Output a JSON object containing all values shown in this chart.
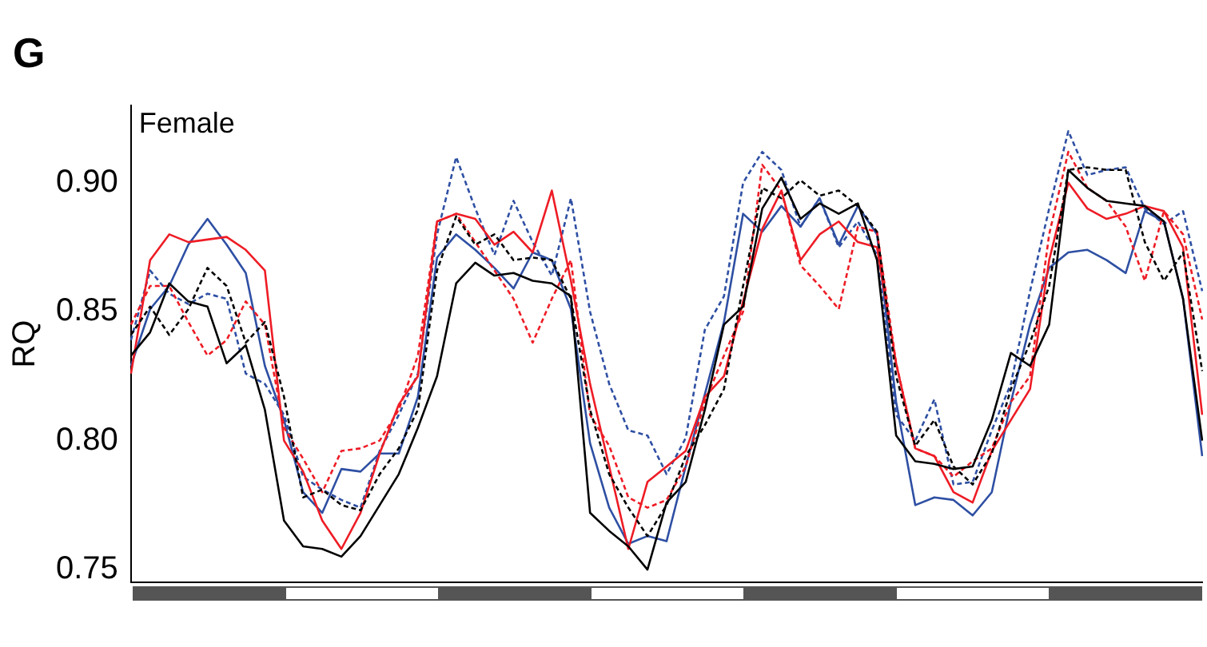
{
  "chart_data": {
    "type": "line",
    "ylabel": "RQ",
    "annotations": [
      "G",
      "Female"
    ],
    "categories": [
      null,
      null,
      null,
      null,
      null,
      null,
      null,
      null,
      null,
      null,
      null,
      null,
      null,
      null,
      null,
      null,
      null,
      null,
      null,
      null,
      null,
      null,
      null,
      null,
      null,
      null,
      null,
      null,
      null,
      null,
      null,
      null,
      null,
      null,
      null,
      null,
      null,
      null,
      null,
      null,
      null,
      null,
      null,
      null,
      null,
      null,
      null,
      null,
      null,
      null,
      null,
      null,
      null,
      null,
      null,
      null,
      null
    ],
    "ylim": [
      0.745,
      0.93
    ],
    "yticks": [
      {
        "value": 0.75,
        "label": "0.75"
      },
      {
        "value": 0.8,
        "label": "0.80"
      },
      {
        "value": 0.85,
        "label": "0.85"
      },
      {
        "value": 0.9,
        "label": "0.90"
      }
    ],
    "grid": false,
    "legend": false,
    "marker": "none",
    "series": [
      {
        "color": "#000000",
        "line_style": "solid",
        "values": [
          0.833,
          0.842,
          0.861,
          0.854,
          0.852,
          0.83,
          0.837,
          0.812,
          0.769,
          0.759,
          0.758,
          0.755,
          0.763,
          0.775,
          0.787,
          0.805,
          0.825,
          0.861,
          0.869,
          0.864,
          0.865,
          0.862,
          0.861,
          0.856,
          0.772,
          0.765,
          0.759,
          0.75,
          0.776,
          0.784,
          0.812,
          0.845,
          0.852,
          0.89,
          0.902,
          0.886,
          0.892,
          0.888,
          0.892,
          0.87,
          0.802,
          0.792,
          0.791,
          0.789,
          0.79,
          0.808,
          0.834,
          0.829,
          0.845,
          0.905,
          0.898,
          0.893,
          0.892,
          0.891,
          0.885,
          0.855,
          0.8
        ]
      },
      {
        "color": "#000000",
        "line_style": "dashed",
        "values": [
          0.841,
          0.852,
          0.841,
          0.851,
          0.867,
          0.86,
          0.838,
          0.846,
          0.817,
          0.778,
          0.781,
          0.775,
          0.773,
          0.787,
          0.797,
          0.812,
          0.866,
          0.887,
          0.876,
          0.88,
          0.87,
          0.871,
          0.87,
          0.855,
          0.812,
          0.787,
          0.774,
          0.763,
          0.775,
          0.794,
          0.806,
          0.82,
          0.86,
          0.898,
          0.894,
          0.901,
          0.895,
          0.897,
          0.891,
          0.881,
          0.825,
          0.798,
          0.808,
          0.79,
          0.783,
          0.795,
          0.82,
          0.838,
          0.86,
          0.905,
          0.906,
          0.905,
          0.905,
          0.877,
          0.862,
          0.873,
          0.827
        ]
      },
      {
        "color": "#ee1c25",
        "line_style": "solid",
        "values": [
          0.826,
          0.87,
          0.88,
          0.877,
          0.878,
          0.879,
          0.874,
          0.866,
          0.8,
          0.788,
          0.769,
          0.758,
          0.772,
          0.795,
          0.814,
          0.825,
          0.885,
          0.888,
          0.886,
          0.876,
          0.881,
          0.873,
          0.897,
          0.862,
          0.822,
          0.79,
          0.758,
          0.784,
          0.79,
          0.796,
          0.817,
          0.825,
          0.854,
          0.882,
          0.897,
          0.87,
          0.88,
          0.885,
          0.877,
          0.875,
          0.83,
          0.797,
          0.794,
          0.78,
          0.776,
          0.796,
          0.808,
          0.82,
          0.87,
          0.9,
          0.89,
          0.886,
          0.888,
          0.891,
          0.889,
          0.875,
          0.81
        ]
      },
      {
        "color": "#ee1c25",
        "line_style": "dashed",
        "values": [
          0.845,
          0.86,
          0.86,
          0.846,
          0.833,
          0.839,
          0.854,
          0.845,
          0.805,
          0.793,
          0.78,
          0.796,
          0.797,
          0.8,
          0.812,
          0.833,
          0.885,
          0.888,
          0.877,
          0.866,
          0.855,
          0.838,
          0.855,
          0.87,
          0.81,
          0.798,
          0.778,
          0.774,
          0.777,
          0.79,
          0.815,
          0.833,
          0.85,
          0.907,
          0.897,
          0.868,
          0.86,
          0.851,
          0.883,
          0.881,
          0.83,
          0.797,
          0.794,
          0.786,
          0.792,
          0.797,
          0.815,
          0.825,
          0.88,
          0.912,
          0.898,
          0.893,
          0.883,
          0.862,
          0.889,
          0.88,
          0.847
        ]
      },
      {
        "color": "#2e4fa3",
        "line_style": "solid",
        "values": [
          0.829,
          0.851,
          0.86,
          0.876,
          0.886,
          0.876,
          0.865,
          0.829,
          0.808,
          0.78,
          0.772,
          0.789,
          0.788,
          0.795,
          0.795,
          0.817,
          0.871,
          0.88,
          0.874,
          0.867,
          0.859,
          0.873,
          0.87,
          0.851,
          0.799,
          0.774,
          0.76,
          0.763,
          0.761,
          0.79,
          0.818,
          0.846,
          0.888,
          0.881,
          0.891,
          0.883,
          0.894,
          0.876,
          0.891,
          0.88,
          0.815,
          0.775,
          0.778,
          0.777,
          0.771,
          0.78,
          0.815,
          0.845,
          0.867,
          0.873,
          0.874,
          0.87,
          0.865,
          0.889,
          0.885,
          0.855,
          0.794
        ]
      },
      {
        "color": "#2e4fa3",
        "line_style": "dashed",
        "values": [
          0.839,
          0.866,
          0.857,
          0.853,
          0.857,
          0.855,
          0.826,
          0.822,
          0.81,
          0.786,
          0.781,
          0.777,
          0.774,
          0.796,
          0.81,
          0.826,
          0.88,
          0.91,
          0.89,
          0.872,
          0.893,
          0.877,
          0.864,
          0.894,
          0.85,
          0.822,
          0.804,
          0.802,
          0.787,
          0.801,
          0.843,
          0.856,
          0.9,
          0.912,
          0.905,
          0.883,
          0.894,
          0.875,
          0.885,
          0.872,
          0.81,
          0.8,
          0.816,
          0.783,
          0.784,
          0.804,
          0.822,
          0.858,
          0.89,
          0.92,
          0.903,
          0.905,
          0.906,
          0.89,
          0.884,
          0.889,
          0.858
        ]
      }
    ]
  }
}
